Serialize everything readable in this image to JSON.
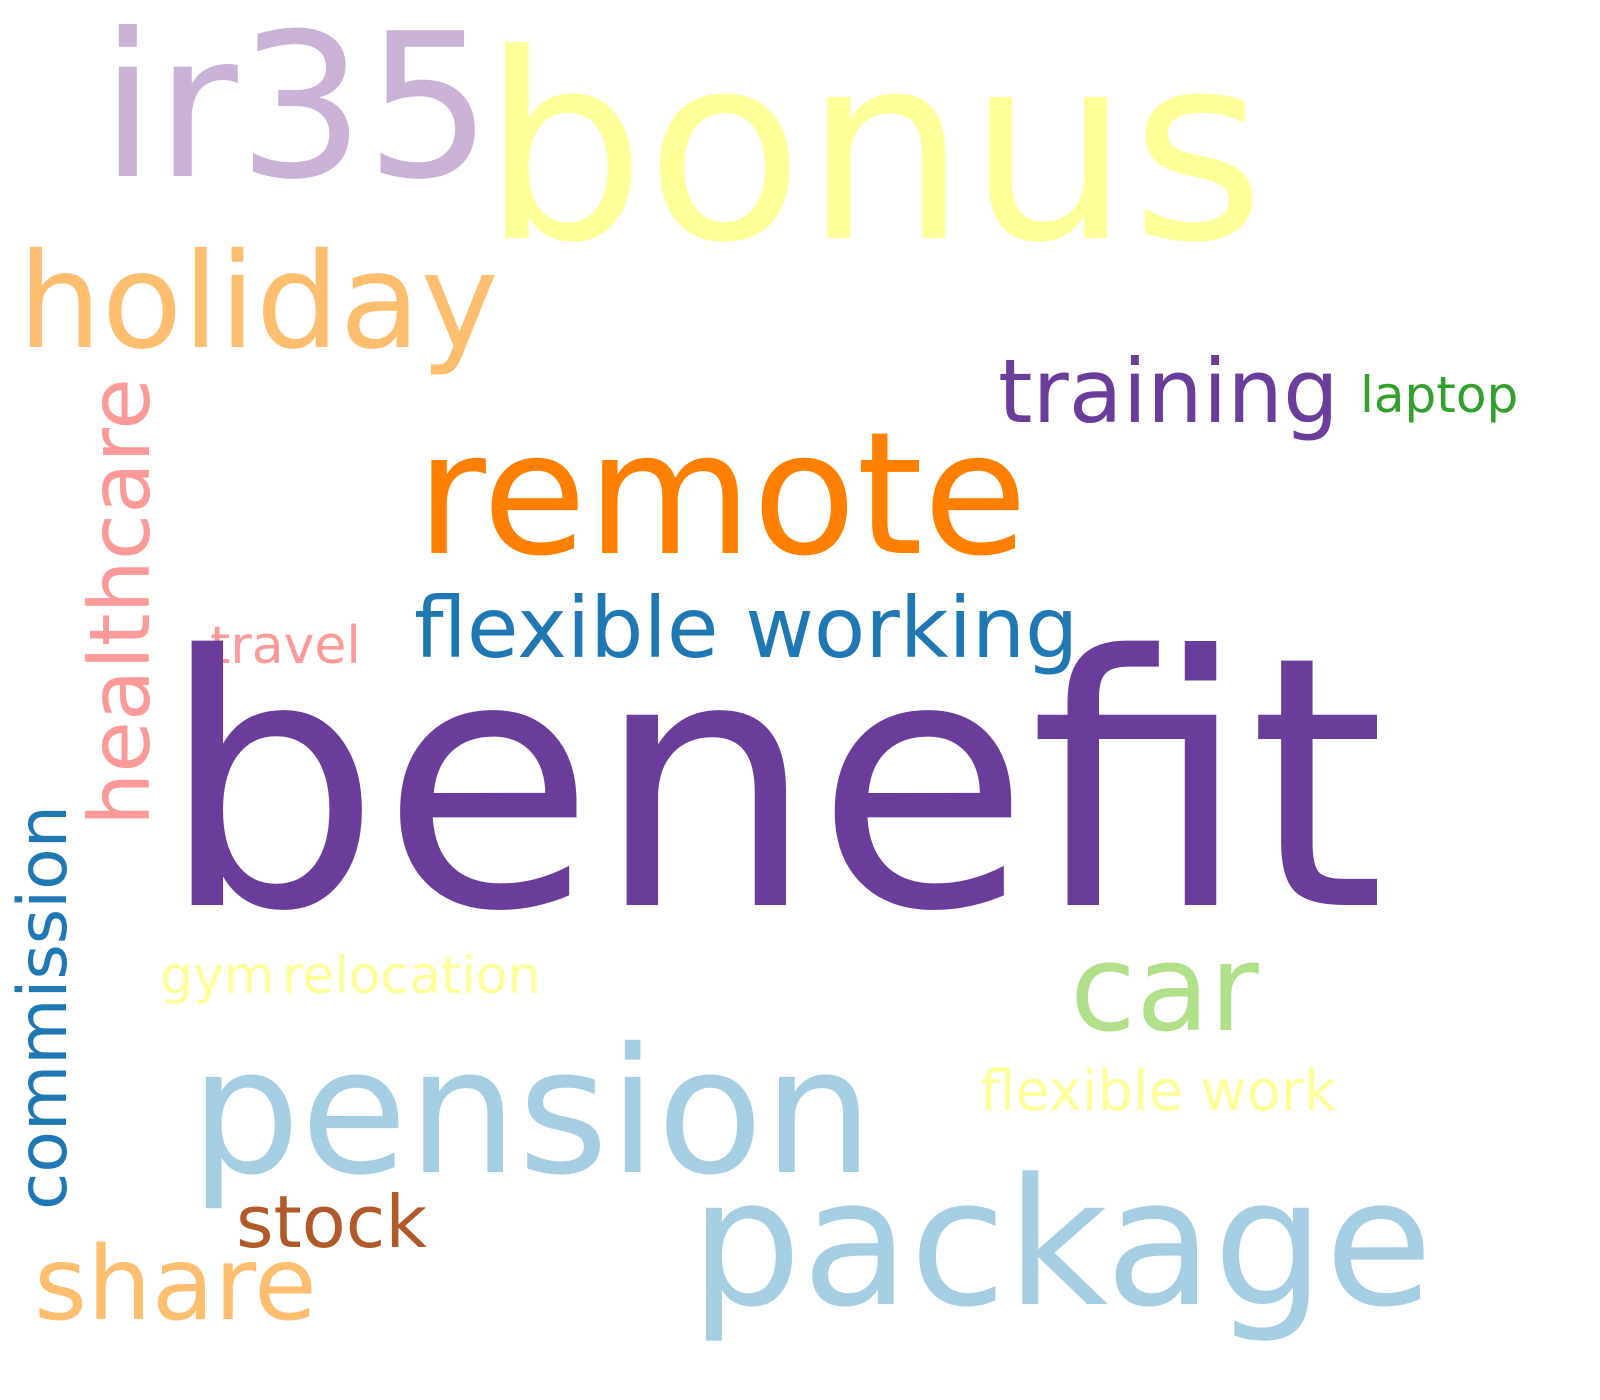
{
  "words": {
    "bonus": {
      "text": "bonus",
      "color": "#ffff99"
    },
    "ir35": {
      "text": "ir35",
      "color": "#cab2d6"
    },
    "holiday": {
      "text": "holiday",
      "color": "#fdbf6f"
    },
    "healthcare": {
      "text": "healthcare",
      "color": "#fb9a99"
    },
    "training": {
      "text": "training",
      "color": "#6a3d9a"
    },
    "laptop": {
      "text": "laptop",
      "color": "#33a02c"
    },
    "remote": {
      "text": "remote",
      "color": "#ff7f00"
    },
    "flexible_working": {
      "text": "flexible working",
      "color": "#1f78b4"
    },
    "travel": {
      "text": "travel",
      "color": "#fb9a99"
    },
    "benefit": {
      "text": "benefit",
      "color": "#6a3d9a"
    },
    "commission": {
      "text": "commission",
      "color": "#1f78b4"
    },
    "gym": {
      "text": "gym",
      "color": "#ffff99"
    },
    "relocation": {
      "text": "relocation",
      "color": "#ffff99"
    },
    "car": {
      "text": "car",
      "color": "#b2df8a"
    },
    "pension": {
      "text": "pension",
      "color": "#a6cee3"
    },
    "flexible_work": {
      "text": "flexible work",
      "color": "#ffff99"
    },
    "stock": {
      "text": "stock",
      "color": "#b15928"
    },
    "share": {
      "text": "share",
      "color": "#fdbf6f"
    },
    "package": {
      "text": "package",
      "color": "#a6cee3"
    }
  }
}
